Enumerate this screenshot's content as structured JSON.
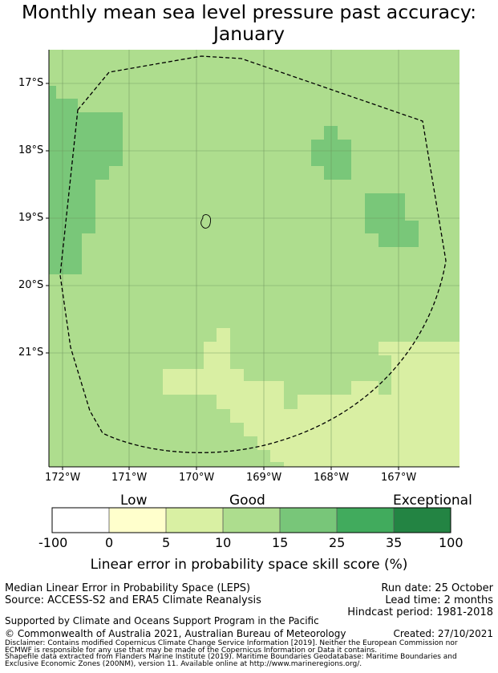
{
  "title_line1": "Monthly mean sea level pressure past accuracy:",
  "title_line2": "January",
  "map": {
    "lat_labels": [
      "17°S",
      "18°S",
      "19°S",
      "20°S",
      "21°S"
    ],
    "lon_labels": [
      "172°W",
      "171°W",
      "170°W",
      "169°W",
      "168°W",
      "167°W"
    ],
    "colors": {
      "grid": "#6a8f5a",
      "class_10_15": "#aedd8e",
      "class_15_25": "#79c779",
      "class_5_10": "#d9efa3",
      "boundary": "#000000"
    }
  },
  "colorbar": {
    "categories": [
      "Low",
      "Good",
      "Exceptional"
    ],
    "ticks": [
      "-100",
      "0",
      "5",
      "10",
      "15",
      "25",
      "35",
      "100"
    ],
    "colors": [
      "#ffffff",
      "#ffffcc",
      "#d9f0a3",
      "#addd8e",
      "#78c679",
      "#41ab5d",
      "#238443"
    ],
    "label": "Linear error in probability space skill score (%)"
  },
  "footer": {
    "method": "Median Linear Error in Probability Space (LEPS)",
    "source": "Source: ACCESS-S2 and ERA5 Climate Reanalysis",
    "run_date": "Run date: 25 October",
    "lead_time": "Lead time: 2 months",
    "hindcast": "Hindcast period: 1981-2018",
    "support": "Supported by Climate and Oceans Support Program in the Pacific",
    "copyright": "© Commonwealth of Australia 2021, Australian Bureau of Meteorology",
    "created": "Created: 27/10/2021",
    "disclaimer1": "Disclaimer: Contains modified Copernicus Climate Change Service Information [2019]. Neither the European Commission nor",
    "disclaimer2": "ECMWF is responsible for any use that may be made of the Copernicus Information or Data it contains.",
    "shapefile1": "Shapefile data extracted from Flanders Marine Institute (2019). Maritime Boundaries Geodatabase: Maritime Boundaries and",
    "shapefile2": "Exclusive Economic Zones (200NM), version 11. Available online at http://www.marineregions.org/."
  }
}
